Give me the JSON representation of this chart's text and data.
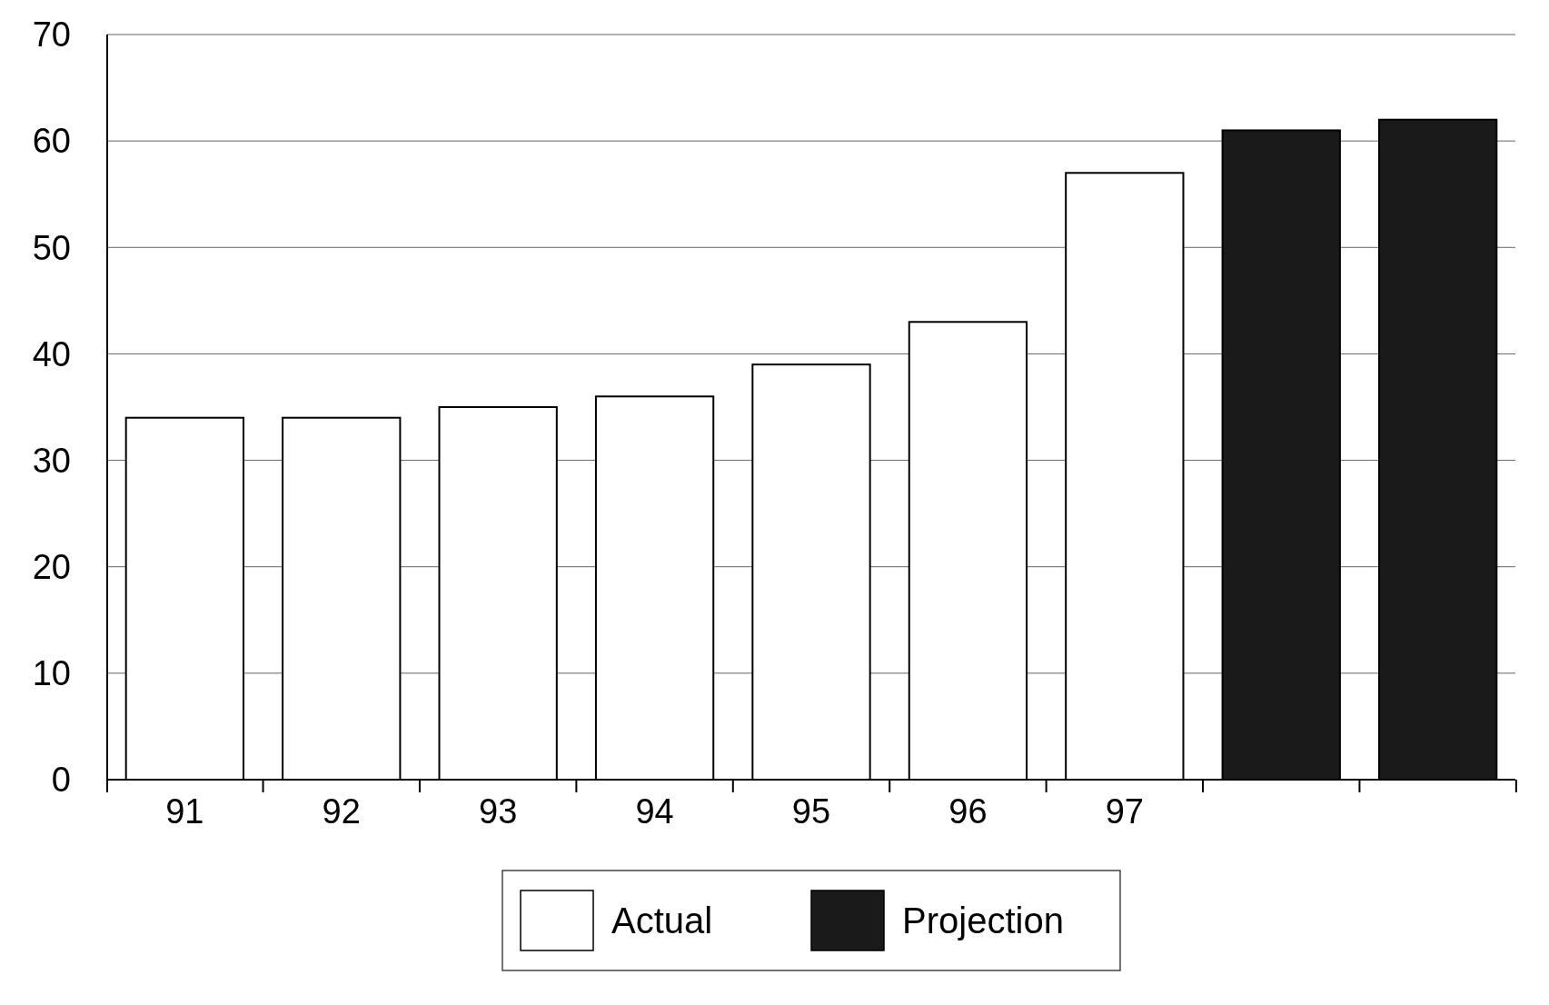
{
  "chart_data": {
    "type": "bar",
    "categories": [
      "91",
      "92",
      "93",
      "94",
      "95",
      "96",
      "97",
      null,
      null
    ],
    "series": [
      {
        "name": "Actual",
        "color": "#ffffff",
        "values": [
          34,
          34,
          35,
          36,
          39,
          43,
          57,
          null,
          null
        ]
      },
      {
        "name": "Projection",
        "color": "#1a1a1a",
        "values": [
          null,
          null,
          null,
          null,
          null,
          null,
          null,
          61,
          62
        ]
      }
    ],
    "ylim": [
      0,
      70
    ],
    "yticks": [
      0,
      10,
      20,
      30,
      40,
      50,
      60,
      70
    ],
    "grid": "y",
    "legend": "bottom"
  }
}
